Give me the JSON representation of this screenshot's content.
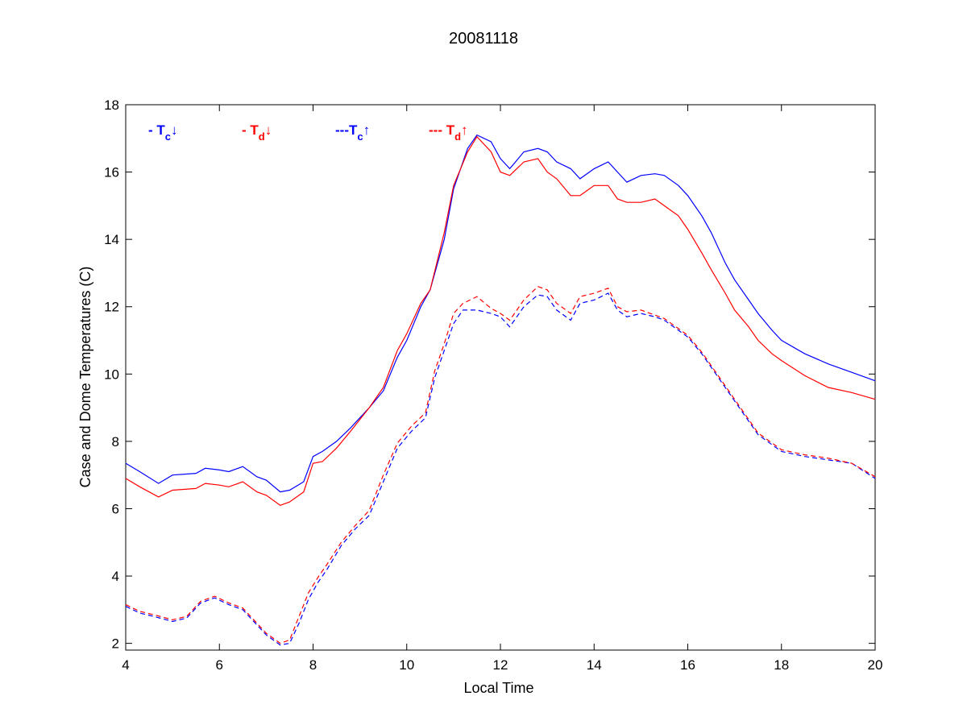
{
  "chart_data": {
    "type": "line",
    "title": "20081118",
    "xlabel": "Local Time",
    "ylabel": "Case and Dome Temperatures (C)",
    "xlim": [
      4,
      20
    ],
    "ylim": [
      1.8,
      18
    ],
    "xticks": [
      4,
      6,
      8,
      10,
      12,
      14,
      16,
      18,
      20
    ],
    "yticks": [
      2,
      4,
      6,
      8,
      10,
      12,
      14,
      16,
      18
    ],
    "grid": false,
    "legend_placement": "top-left, horizontal inside plot",
    "series": [
      {
        "name": "- Tc↓",
        "legend": {
          "prefix": "- T",
          "sub": "c",
          "arrow": "↓"
        },
        "color": "#0000ff",
        "dash": "solid",
        "x": [
          4,
          4.3,
          4.7,
          5.0,
          5.5,
          5.7,
          6.0,
          6.2,
          6.5,
          6.8,
          7.0,
          7.3,
          7.5,
          7.8,
          8.0,
          8.2,
          8.5,
          8.8,
          9.2,
          9.5,
          9.8,
          10.0,
          10.3,
          10.5,
          10.8,
          11.0,
          11.3,
          11.5,
          11.8,
          12.0,
          12.2,
          12.5,
          12.8,
          13.0,
          13.2,
          13.5,
          13.7,
          14.0,
          14.3,
          14.5,
          14.7,
          15.0,
          15.3,
          15.5,
          15.8,
          16.0,
          16.3,
          16.5,
          16.8,
          17.0,
          17.3,
          17.5,
          17.8,
          18.0,
          18.5,
          19.0,
          19.5,
          20.0
        ],
        "y": [
          7.35,
          7.1,
          6.75,
          7.0,
          7.05,
          7.2,
          7.15,
          7.1,
          7.25,
          6.95,
          6.85,
          6.5,
          6.55,
          6.8,
          7.55,
          7.7,
          8.0,
          8.4,
          9.0,
          9.5,
          10.5,
          11.0,
          12.0,
          12.5,
          14.0,
          15.5,
          16.7,
          17.1,
          16.9,
          16.4,
          16.1,
          16.6,
          16.7,
          16.6,
          16.3,
          16.1,
          15.8,
          16.1,
          16.3,
          16.0,
          15.7,
          15.9,
          15.95,
          15.9,
          15.6,
          15.3,
          14.7,
          14.2,
          13.3,
          12.8,
          12.2,
          11.8,
          11.3,
          11.0,
          10.6,
          10.3,
          10.05,
          9.8
        ]
      },
      {
        "name": "- Td↓",
        "legend": {
          "prefix": "- T",
          "sub": "d",
          "arrow": "↓"
        },
        "color": "#ff0000",
        "dash": "solid",
        "x": [
          4,
          4.3,
          4.7,
          5.0,
          5.5,
          5.7,
          6.0,
          6.2,
          6.5,
          6.8,
          7.0,
          7.3,
          7.5,
          7.8,
          8.0,
          8.2,
          8.5,
          8.8,
          9.2,
          9.5,
          9.8,
          10.0,
          10.3,
          10.5,
          10.8,
          11.0,
          11.3,
          11.5,
          11.8,
          12.0,
          12.2,
          12.5,
          12.8,
          13.0,
          13.2,
          13.5,
          13.7,
          14.0,
          14.3,
          14.5,
          14.7,
          15.0,
          15.3,
          15.5,
          15.8,
          16.0,
          16.3,
          16.5,
          16.8,
          17.0,
          17.3,
          17.5,
          17.8,
          18.0,
          18.5,
          19.0,
          19.5,
          20.0
        ],
        "y": [
          6.9,
          6.65,
          6.35,
          6.55,
          6.6,
          6.75,
          6.7,
          6.65,
          6.8,
          6.5,
          6.4,
          6.1,
          6.2,
          6.5,
          7.35,
          7.4,
          7.8,
          8.3,
          9.0,
          9.6,
          10.7,
          11.2,
          12.1,
          12.5,
          14.2,
          15.6,
          16.6,
          17.05,
          16.6,
          16.0,
          15.9,
          16.3,
          16.4,
          16.0,
          15.8,
          15.3,
          15.3,
          15.6,
          15.6,
          15.2,
          15.1,
          15.1,
          15.2,
          15.0,
          14.7,
          14.3,
          13.6,
          13.1,
          12.4,
          11.9,
          11.4,
          11.0,
          10.6,
          10.4,
          9.95,
          9.6,
          9.45,
          9.25
        ]
      },
      {
        "name": "---Tc↑",
        "legend": {
          "prefix": "---T",
          "sub": "c",
          "arrow": "↑"
        },
        "color": "#0000ff",
        "dash": "dashed",
        "x": [
          4,
          4.3,
          4.6,
          5.0,
          5.3,
          5.6,
          5.9,
          6.2,
          6.5,
          6.8,
          7.0,
          7.3,
          7.5,
          7.7,
          7.9,
          8.1,
          8.3,
          8.6,
          8.9,
          9.2,
          9.5,
          9.8,
          10.1,
          10.4,
          10.6,
          10.8,
          11.0,
          11.2,
          11.5,
          11.8,
          12.0,
          12.2,
          12.5,
          12.8,
          13.0,
          13.2,
          13.5,
          13.7,
          14.0,
          14.3,
          14.5,
          14.7,
          15.0,
          15.3,
          15.5,
          15.8,
          16.0,
          16.3,
          16.6,
          16.9,
          17.2,
          17.5,
          17.8,
          18.0,
          18.5,
          19.0,
          19.5,
          20.0
        ],
        "y": [
          3.1,
          2.9,
          2.8,
          2.65,
          2.75,
          3.2,
          3.35,
          3.15,
          3.0,
          2.55,
          2.25,
          1.95,
          2.0,
          2.6,
          3.3,
          3.8,
          4.2,
          4.9,
          5.4,
          5.8,
          6.8,
          7.8,
          8.3,
          8.7,
          9.9,
          10.7,
          11.5,
          11.9,
          11.9,
          11.8,
          11.7,
          11.4,
          12.0,
          12.35,
          12.3,
          11.9,
          11.6,
          12.1,
          12.2,
          12.4,
          11.9,
          11.7,
          11.8,
          11.7,
          11.6,
          11.3,
          11.1,
          10.6,
          10.0,
          9.4,
          8.8,
          8.2,
          7.9,
          7.7,
          7.55,
          7.45,
          7.35,
          6.9
        ]
      },
      {
        "name": "--- Td↑",
        "legend": {
          "prefix": "--- T",
          "sub": "d",
          "arrow": "↑"
        },
        "color": "#ff0000",
        "dash": "dashed",
        "x": [
          4,
          4.3,
          4.6,
          5.0,
          5.3,
          5.6,
          5.9,
          6.2,
          6.5,
          6.8,
          7.0,
          7.3,
          7.5,
          7.7,
          7.9,
          8.1,
          8.3,
          8.6,
          8.9,
          9.2,
          9.5,
          9.8,
          10.1,
          10.4,
          10.6,
          10.8,
          11.0,
          11.2,
          11.5,
          11.8,
          12.0,
          12.2,
          12.5,
          12.8,
          13.0,
          13.2,
          13.5,
          13.7,
          14.0,
          14.3,
          14.5,
          14.7,
          15.0,
          15.3,
          15.5,
          15.8,
          16.0,
          16.3,
          16.6,
          16.9,
          17.2,
          17.5,
          17.8,
          18.0,
          18.5,
          19.0,
          19.5,
          20.0
        ],
        "y": [
          3.15,
          2.95,
          2.85,
          2.7,
          2.8,
          3.25,
          3.4,
          3.2,
          3.05,
          2.6,
          2.3,
          2.0,
          2.1,
          2.8,
          3.5,
          3.95,
          4.35,
          5.0,
          5.5,
          5.95,
          7.0,
          7.95,
          8.45,
          8.85,
          10.1,
          10.9,
          11.8,
          12.1,
          12.3,
          11.95,
          11.8,
          11.6,
          12.2,
          12.6,
          12.5,
          12.1,
          11.8,
          12.3,
          12.4,
          12.55,
          12.0,
          11.85,
          11.9,
          11.75,
          11.65,
          11.35,
          11.15,
          10.65,
          10.05,
          9.45,
          8.85,
          8.25,
          7.95,
          7.75,
          7.6,
          7.5,
          7.35,
          6.95
        ]
      }
    ]
  }
}
